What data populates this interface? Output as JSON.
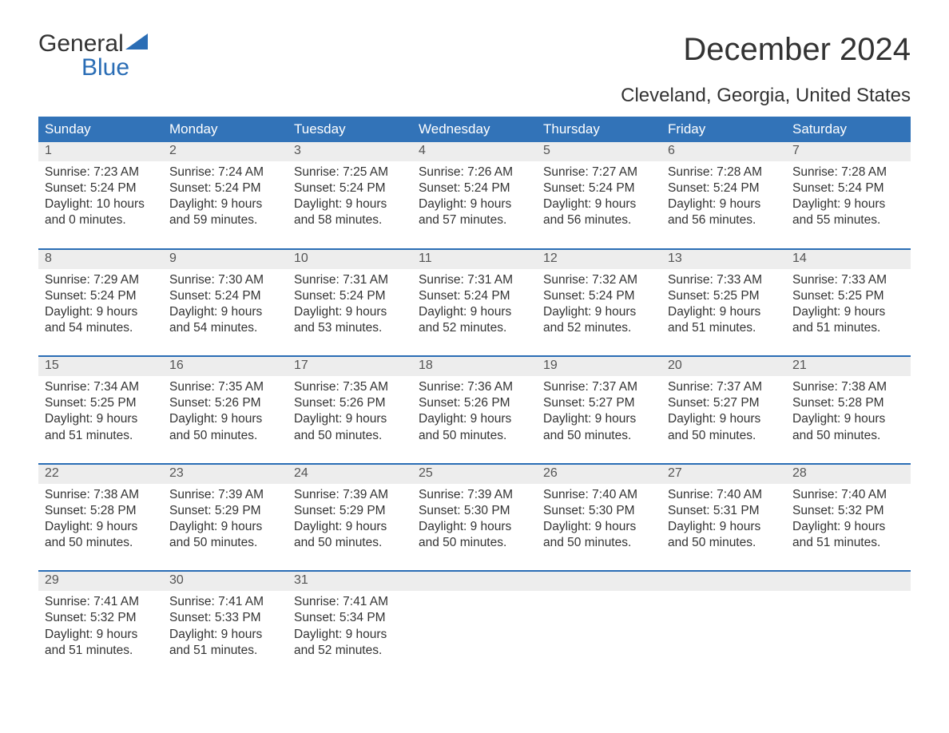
{
  "logo": {
    "word1": "General",
    "word2": "Blue"
  },
  "title": "December 2024",
  "subtitle": "Cleveland, Georgia, United States",
  "colors": {
    "header_bg": "#3273b8",
    "header_text": "#ffffff",
    "week_border": "#2a6db5",
    "daynum_bg": "#ededed",
    "daynum_text": "#555555",
    "body_text": "#333333",
    "logo_blue": "#2a6db5",
    "page_bg": "#ffffff"
  },
  "day_labels": [
    "Sunday",
    "Monday",
    "Tuesday",
    "Wednesday",
    "Thursday",
    "Friday",
    "Saturday"
  ],
  "weeks": [
    [
      {
        "n": "1",
        "sunrise": "Sunrise: 7:23 AM",
        "sunset": "Sunset: 5:24 PM",
        "dl1": "Daylight: 10 hours",
        "dl2": "and 0 minutes."
      },
      {
        "n": "2",
        "sunrise": "Sunrise: 7:24 AM",
        "sunset": "Sunset: 5:24 PM",
        "dl1": "Daylight: 9 hours",
        "dl2": "and 59 minutes."
      },
      {
        "n": "3",
        "sunrise": "Sunrise: 7:25 AM",
        "sunset": "Sunset: 5:24 PM",
        "dl1": "Daylight: 9 hours",
        "dl2": "and 58 minutes."
      },
      {
        "n": "4",
        "sunrise": "Sunrise: 7:26 AM",
        "sunset": "Sunset: 5:24 PM",
        "dl1": "Daylight: 9 hours",
        "dl2": "and 57 minutes."
      },
      {
        "n": "5",
        "sunrise": "Sunrise: 7:27 AM",
        "sunset": "Sunset: 5:24 PM",
        "dl1": "Daylight: 9 hours",
        "dl2": "and 56 minutes."
      },
      {
        "n": "6",
        "sunrise": "Sunrise: 7:28 AM",
        "sunset": "Sunset: 5:24 PM",
        "dl1": "Daylight: 9 hours",
        "dl2": "and 56 minutes."
      },
      {
        "n": "7",
        "sunrise": "Sunrise: 7:28 AM",
        "sunset": "Sunset: 5:24 PM",
        "dl1": "Daylight: 9 hours",
        "dl2": "and 55 minutes."
      }
    ],
    [
      {
        "n": "8",
        "sunrise": "Sunrise: 7:29 AM",
        "sunset": "Sunset: 5:24 PM",
        "dl1": "Daylight: 9 hours",
        "dl2": "and 54 minutes."
      },
      {
        "n": "9",
        "sunrise": "Sunrise: 7:30 AM",
        "sunset": "Sunset: 5:24 PM",
        "dl1": "Daylight: 9 hours",
        "dl2": "and 54 minutes."
      },
      {
        "n": "10",
        "sunrise": "Sunrise: 7:31 AM",
        "sunset": "Sunset: 5:24 PM",
        "dl1": "Daylight: 9 hours",
        "dl2": "and 53 minutes."
      },
      {
        "n": "11",
        "sunrise": "Sunrise: 7:31 AM",
        "sunset": "Sunset: 5:24 PM",
        "dl1": "Daylight: 9 hours",
        "dl2": "and 52 minutes."
      },
      {
        "n": "12",
        "sunrise": "Sunrise: 7:32 AM",
        "sunset": "Sunset: 5:24 PM",
        "dl1": "Daylight: 9 hours",
        "dl2": "and 52 minutes."
      },
      {
        "n": "13",
        "sunrise": "Sunrise: 7:33 AM",
        "sunset": "Sunset: 5:25 PM",
        "dl1": "Daylight: 9 hours",
        "dl2": "and 51 minutes."
      },
      {
        "n": "14",
        "sunrise": "Sunrise: 7:33 AM",
        "sunset": "Sunset: 5:25 PM",
        "dl1": "Daylight: 9 hours",
        "dl2": "and 51 minutes."
      }
    ],
    [
      {
        "n": "15",
        "sunrise": "Sunrise: 7:34 AM",
        "sunset": "Sunset: 5:25 PM",
        "dl1": "Daylight: 9 hours",
        "dl2": "and 51 minutes."
      },
      {
        "n": "16",
        "sunrise": "Sunrise: 7:35 AM",
        "sunset": "Sunset: 5:26 PM",
        "dl1": "Daylight: 9 hours",
        "dl2": "and 50 minutes."
      },
      {
        "n": "17",
        "sunrise": "Sunrise: 7:35 AM",
        "sunset": "Sunset: 5:26 PM",
        "dl1": "Daylight: 9 hours",
        "dl2": "and 50 minutes."
      },
      {
        "n": "18",
        "sunrise": "Sunrise: 7:36 AM",
        "sunset": "Sunset: 5:26 PM",
        "dl1": "Daylight: 9 hours",
        "dl2": "and 50 minutes."
      },
      {
        "n": "19",
        "sunrise": "Sunrise: 7:37 AM",
        "sunset": "Sunset: 5:27 PM",
        "dl1": "Daylight: 9 hours",
        "dl2": "and 50 minutes."
      },
      {
        "n": "20",
        "sunrise": "Sunrise: 7:37 AM",
        "sunset": "Sunset: 5:27 PM",
        "dl1": "Daylight: 9 hours",
        "dl2": "and 50 minutes."
      },
      {
        "n": "21",
        "sunrise": "Sunrise: 7:38 AM",
        "sunset": "Sunset: 5:28 PM",
        "dl1": "Daylight: 9 hours",
        "dl2": "and 50 minutes."
      }
    ],
    [
      {
        "n": "22",
        "sunrise": "Sunrise: 7:38 AM",
        "sunset": "Sunset: 5:28 PM",
        "dl1": "Daylight: 9 hours",
        "dl2": "and 50 minutes."
      },
      {
        "n": "23",
        "sunrise": "Sunrise: 7:39 AM",
        "sunset": "Sunset: 5:29 PM",
        "dl1": "Daylight: 9 hours",
        "dl2": "and 50 minutes."
      },
      {
        "n": "24",
        "sunrise": "Sunrise: 7:39 AM",
        "sunset": "Sunset: 5:29 PM",
        "dl1": "Daylight: 9 hours",
        "dl2": "and 50 minutes."
      },
      {
        "n": "25",
        "sunrise": "Sunrise: 7:39 AM",
        "sunset": "Sunset: 5:30 PM",
        "dl1": "Daylight: 9 hours",
        "dl2": "and 50 minutes."
      },
      {
        "n": "26",
        "sunrise": "Sunrise: 7:40 AM",
        "sunset": "Sunset: 5:30 PM",
        "dl1": "Daylight: 9 hours",
        "dl2": "and 50 minutes."
      },
      {
        "n": "27",
        "sunrise": "Sunrise: 7:40 AM",
        "sunset": "Sunset: 5:31 PM",
        "dl1": "Daylight: 9 hours",
        "dl2": "and 50 minutes."
      },
      {
        "n": "28",
        "sunrise": "Sunrise: 7:40 AM",
        "sunset": "Sunset: 5:32 PM",
        "dl1": "Daylight: 9 hours",
        "dl2": "and 51 minutes."
      }
    ],
    [
      {
        "n": "29",
        "sunrise": "Sunrise: 7:41 AM",
        "sunset": "Sunset: 5:32 PM",
        "dl1": "Daylight: 9 hours",
        "dl2": "and 51 minutes."
      },
      {
        "n": "30",
        "sunrise": "Sunrise: 7:41 AM",
        "sunset": "Sunset: 5:33 PM",
        "dl1": "Daylight: 9 hours",
        "dl2": "and 51 minutes."
      },
      {
        "n": "31",
        "sunrise": "Sunrise: 7:41 AM",
        "sunset": "Sunset: 5:34 PM",
        "dl1": "Daylight: 9 hours",
        "dl2": "and 52 minutes."
      },
      {
        "empty": true
      },
      {
        "empty": true
      },
      {
        "empty": true
      },
      {
        "empty": true
      }
    ]
  ]
}
